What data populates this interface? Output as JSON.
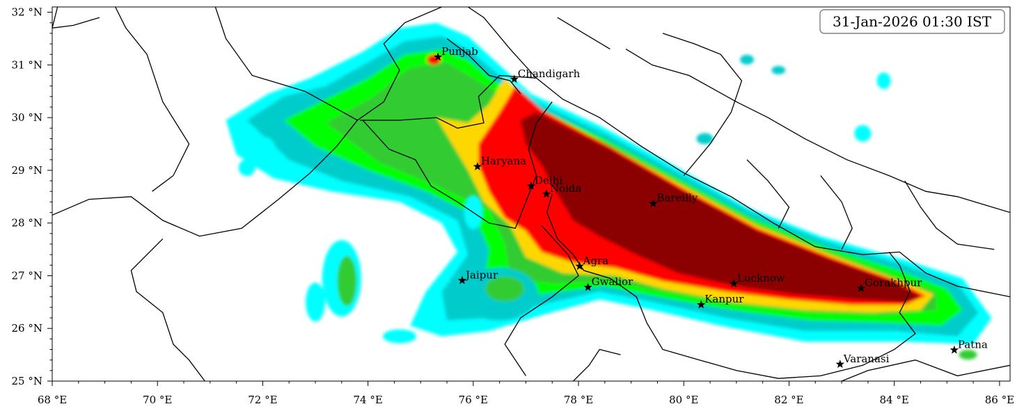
{
  "timestamp": "31-Jan-2026 01:30 IST",
  "axes": {
    "lon_min": 68,
    "lon_max": 86.2,
    "lat_min": 25,
    "lat_max": 32.1,
    "x_ticks": [
      {
        "value": 68,
        "label": "68 °E"
      },
      {
        "value": 70,
        "label": "70 °E"
      },
      {
        "value": 72,
        "label": "72 °E"
      },
      {
        "value": 74,
        "label": "74 °E"
      },
      {
        "value": 76,
        "label": "76 °E"
      },
      {
        "value": 78,
        "label": "78 °E"
      },
      {
        "value": 80,
        "label": "80 °E"
      },
      {
        "value": 82,
        "label": "82 °E"
      },
      {
        "value": 84,
        "label": "84 °E"
      },
      {
        "value": 86,
        "label": "86 °E"
      }
    ],
    "y_ticks": [
      {
        "value": 25,
        "label": "25 °N"
      },
      {
        "value": 26,
        "label": "26 °N"
      },
      {
        "value": 27,
        "label": "27 °N"
      },
      {
        "value": 28,
        "label": "28 °N"
      },
      {
        "value": 29,
        "label": "29 °N"
      },
      {
        "value": 30,
        "label": "30 °N"
      },
      {
        "value": 31,
        "label": "31 °N"
      },
      {
        "value": 32,
        "label": "32 °N"
      }
    ]
  },
  "field_colors": [
    "#00ffff",
    "#00cccc",
    "#00ff00",
    "#33cc33",
    "#ffd700",
    "#ff0000",
    "#8b0000"
  ],
  "cities": [
    {
      "name": "Punjab",
      "lon": 75.33,
      "lat": 31.15
    },
    {
      "name": "Chandigarh",
      "lon": 76.78,
      "lat": 30.73
    },
    {
      "name": "Haryana",
      "lon": 76.08,
      "lat": 29.07
    },
    {
      "name": "Delhi",
      "lon": 77.1,
      "lat": 28.7
    },
    {
      "name": "Noida",
      "lon": 77.39,
      "lat": 28.55
    },
    {
      "name": "Bareilly",
      "lon": 79.42,
      "lat": 28.37
    },
    {
      "name": "Agra",
      "lon": 78.02,
      "lat": 27.18
    },
    {
      "name": "Jaipur",
      "lon": 75.79,
      "lat": 26.91
    },
    {
      "name": "Gwalior",
      "lon": 78.18,
      "lat": 26.78
    },
    {
      "name": "Lucknow",
      "lon": 80.95,
      "lat": 26.85
    },
    {
      "name": "Kanpur",
      "lon": 80.33,
      "lat": 26.45
    },
    {
      "name": "Gorakhpur",
      "lon": 83.37,
      "lat": 26.76
    },
    {
      "name": "Varanasi",
      "lon": 82.97,
      "lat": 25.32
    },
    {
      "name": "Patna",
      "lon": 85.14,
      "lat": 25.59
    }
  ]
}
